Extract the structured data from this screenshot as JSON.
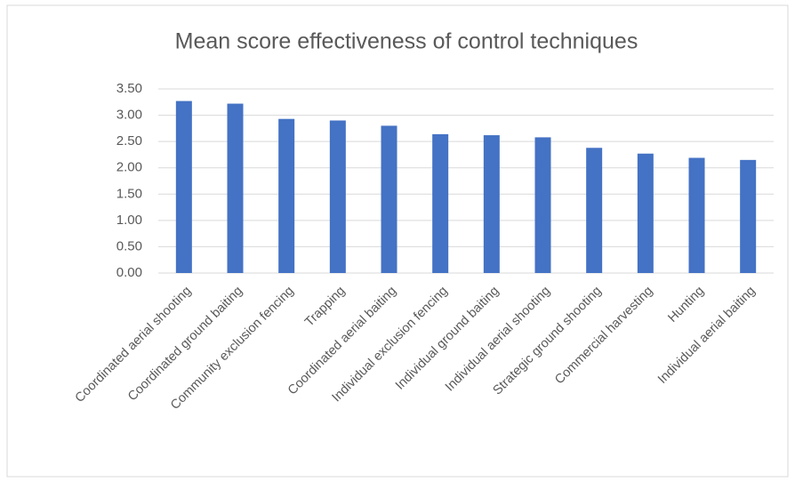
{
  "chart_data": {
    "type": "bar",
    "title": "Mean score effectiveness of control techniques",
    "categories": [
      "Coordinated aerial shooting",
      "Coordinated ground baiting",
      "Community exclusion fencing",
      "Trapping",
      "Coordinated aerial baiting",
      "Individual exclusion fencing",
      "Individual ground baiting",
      "Individual aerial shooting",
      "Strategic ground shooting",
      "Commercial harvesting",
      "Hunting",
      "Individual aerial baiting"
    ],
    "values": [
      3.27,
      3.22,
      2.93,
      2.9,
      2.8,
      2.64,
      2.62,
      2.58,
      2.38,
      2.27,
      2.19,
      2.15
    ],
    "color": "#4472c4",
    "ylim": [
      0,
      3.5
    ],
    "yticks": [
      {
        "value": 0,
        "label": "0.00"
      },
      {
        "value": 0.5,
        "label": "0.50"
      },
      {
        "value": 1,
        "label": "1.00"
      },
      {
        "value": 1.5,
        "label": "1.50"
      },
      {
        "value": 2,
        "label": "2.00"
      },
      {
        "value": 2.5,
        "label": "2.50"
      },
      {
        "value": 3,
        "label": "3.00"
      },
      {
        "value": 3.5,
        "label": "3.50"
      }
    ],
    "grid": true
  }
}
